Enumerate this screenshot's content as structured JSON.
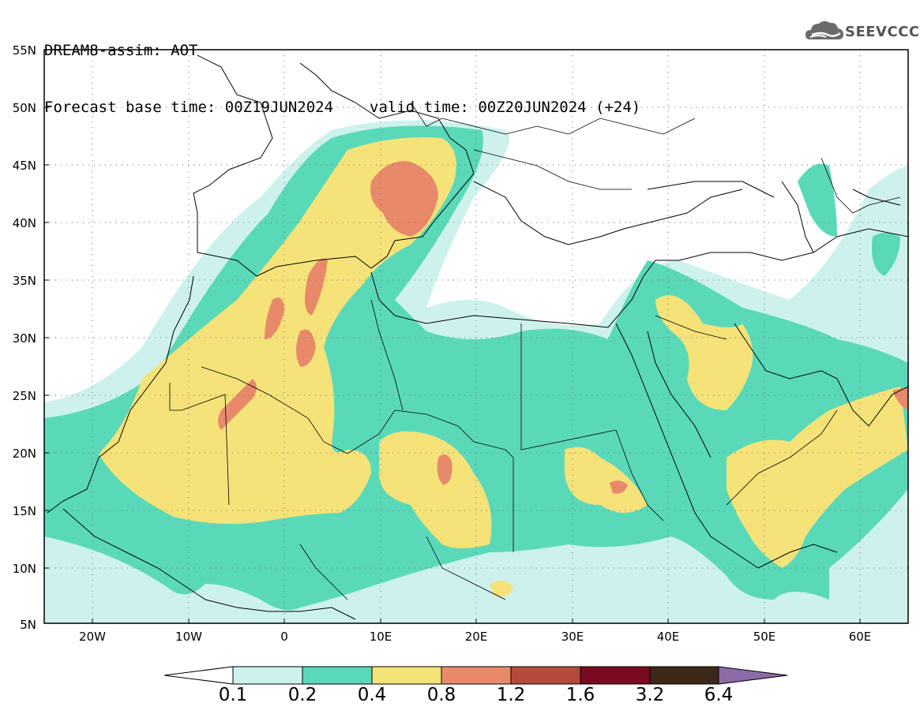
{
  "header": {
    "line1": "DREAM8-assim: AOT",
    "base_time": "Forecast base time: 00Z19JUN2024",
    "valid_time": "valid time: 00Z20JUN2024 (+24)"
  },
  "logo": {
    "text": "SEEVCCC",
    "icon": "cloud-logo-icon"
  },
  "axes": {
    "lat_labels": [
      "55N",
      "50N",
      "45N",
      "40N",
      "35N",
      "30N",
      "25N",
      "20N",
      "15N",
      "10N",
      "5N"
    ],
    "lon_labels": [
      "20W",
      "10W",
      "0",
      "10E",
      "20E",
      "30E",
      "40E",
      "50E",
      "60E"
    ],
    "lat_range": [
      5,
      55
    ],
    "lon_range": [
      -25,
      65
    ],
    "grid": "dotted"
  },
  "legend": {
    "thresholds": [
      "0.1",
      "0.2",
      "0.4",
      "0.8",
      "1.2",
      "1.6",
      "3.2",
      "6.4"
    ],
    "colors": [
      "#cdf2ee",
      "#5ad9b8",
      "#f5e37a",
      "#e88a6a",
      "#b54a3a",
      "#7a0a1f",
      "#3b2818",
      "#8d6aa8"
    ],
    "arrow_low": "#ffffff"
  },
  "colors": {
    "coast": "#000000",
    "border": "#000000",
    "grid": "#666666"
  }
}
